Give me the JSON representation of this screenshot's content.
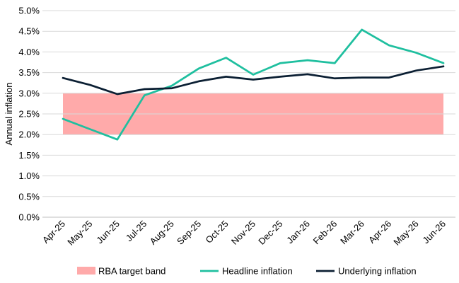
{
  "chart_data": {
    "type": "line",
    "ylabel": "Annual inflation",
    "ylim": [
      0,
      5
    ],
    "y_ticks": [
      "0.0%",
      "0.5%",
      "1.0%",
      "1.5%",
      "2.0%",
      "2.5%",
      "3.0%",
      "3.5%",
      "4.0%",
      "4.5%",
      "5.0%"
    ],
    "grid": "horizontal",
    "legend_position": "bottom",
    "categories": [
      "Apr-25",
      "May-25",
      "Jun-25",
      "Jul-25",
      "Aug-25",
      "Sep-25",
      "Oct-25",
      "Nov-25",
      "Dec-25",
      "Jan-26",
      "Feb-26",
      "Mar-26",
      "Apr-26",
      "May-26",
      "Jun-26"
    ],
    "band": {
      "name": "RBA target band",
      "lower": 2.0,
      "upper": 3.0,
      "color": "#ffaaaa"
    },
    "series": [
      {
        "name": "Headline inflation",
        "color": "#1fbf9f",
        "values": [
          2.38,
          2.13,
          1.88,
          2.95,
          3.18,
          3.6,
          3.86,
          3.45,
          3.73,
          3.8,
          3.73,
          4.54,
          4.16,
          3.98,
          3.73
        ]
      },
      {
        "name": "Underlying inflation",
        "color": "#0b1f33",
        "values": [
          3.37,
          3.2,
          2.98,
          3.1,
          3.12,
          3.29,
          3.4,
          3.33,
          3.4,
          3.46,
          3.36,
          3.38,
          3.38,
          3.55,
          3.65
        ]
      }
    ]
  }
}
